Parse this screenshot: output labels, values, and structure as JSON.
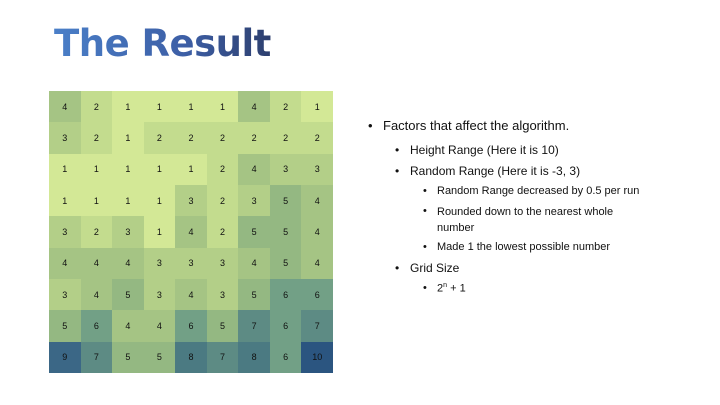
{
  "slide": {
    "title": "The Result",
    "grid": [
      [
        4,
        2,
        1,
        1,
        1,
        1,
        4,
        2,
        1
      ],
      [
        3,
        2,
        1,
        2,
        2,
        2,
        2,
        2,
        2
      ],
      [
        1,
        1,
        1,
        1,
        1,
        2,
        4,
        3,
        3
      ],
      [
        1,
        1,
        1,
        1,
        3,
        2,
        3,
        5,
        4
      ],
      [
        3,
        2,
        3,
        1,
        4,
        2,
        5,
        5,
        4
      ],
      [
        4,
        4,
        4,
        3,
        3,
        3,
        4,
        5,
        4
      ],
      [
        3,
        4,
        5,
        3,
        4,
        3,
        5,
        6,
        6
      ],
      [
        5,
        6,
        4,
        4,
        6,
        5,
        7,
        6,
        7
      ],
      [
        9,
        7,
        5,
        5,
        8,
        7,
        8,
        6,
        10
      ]
    ],
    "colors": {
      "1": "#d3e896",
      "2": "#c3dc8e",
      "3": "#b3cf88",
      "4": "#a5c484",
      "5": "#94b882",
      "6": "#72a086",
      "7": "#5d8b84",
      "8": "#4b7a82",
      "9": "#3b6786",
      "10": "#2b5580"
    },
    "bullets": {
      "factors": "Factors that affect the algorithm.",
      "height_range": "Height Range (Here it is 10)",
      "random_range": "Random Range (Here it is -3, 3)",
      "rr_decreased": "Random Range decreased by 0.5 per run",
      "rounded_down": "Rounded down to the nearest whole number",
      "made_one": "Made 1 the lowest possible number",
      "grid_size": "Grid Size",
      "formula_base": "2",
      "formula_exp": "n",
      "formula_rest": " + 1"
    }
  }
}
